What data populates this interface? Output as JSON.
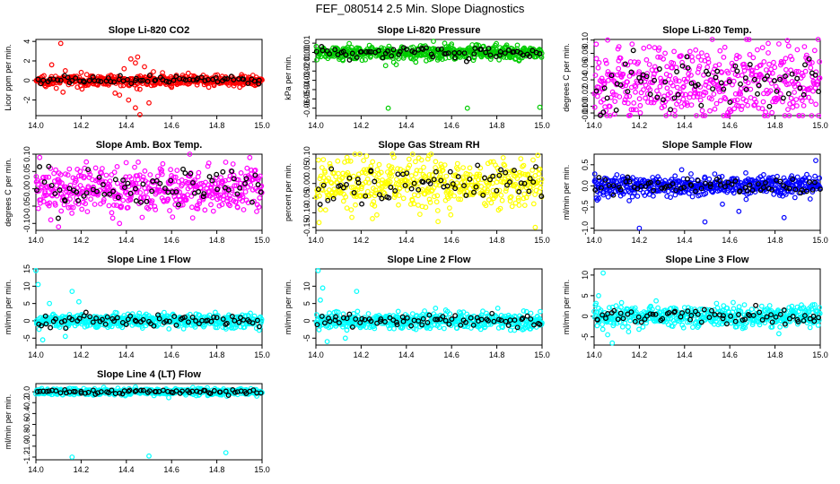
{
  "figure_title": "FEF_080514  2.5 Min. Slope Diagnostics",
  "colors": {
    "red": "#ff0000",
    "green": "#00cc00",
    "magenta": "#ff00ff",
    "yellow": "#ffff00",
    "blue": "#0000ff",
    "cyan": "#00ffff",
    "black": "#000000"
  },
  "chart_data": [
    {
      "type": "scatter",
      "title": "Slope Li-820 CO2",
      "ylabel": "Licor ppm per min.",
      "color": "red",
      "xlim": [
        14.0,
        15.0
      ],
      "ylim": [
        -3.6,
        4.2
      ],
      "x_ticks": [
        "14.0",
        "14.2",
        "14.4",
        "14.6",
        "14.8",
        "15.0"
      ],
      "y_ticks": [
        "-2",
        "0",
        "2",
        "4"
      ],
      "center": 0,
      "noise": 0.25,
      "outliers": [
        [
          14.11,
          3.8
        ],
        [
          14.12,
          -1.2
        ],
        [
          14.07,
          1.6
        ],
        [
          14.09,
          -0.8
        ],
        [
          14.13,
          1.0
        ],
        [
          14.35,
          -1.3
        ],
        [
          14.37,
          -1.5
        ],
        [
          14.39,
          1.2
        ],
        [
          14.41,
          -2.0
        ],
        [
          14.42,
          2.2
        ],
        [
          14.44,
          -2.8
        ],
        [
          14.45,
          2.4
        ],
        [
          14.46,
          -0.9
        ],
        [
          14.48,
          1.4
        ],
        [
          14.5,
          -2.3
        ],
        [
          14.52,
          0.9
        ],
        [
          14.46,
          -3.5
        ],
        [
          14.44,
          1.8
        ],
        [
          14.56,
          0.8
        ],
        [
          14.6,
          -0.7
        ]
      ]
    },
    {
      "type": "scatter",
      "title": "Slope Li-820 Pressure",
      "ylabel": "kPa per min.",
      "color": "green",
      "xlim": [
        14.0,
        15.0
      ],
      "ylim": [
        -0.068,
        0.014
      ],
      "x_ticks": [
        "14.0",
        "14.2",
        "14.4",
        "14.6",
        "14.8",
        "15.0"
      ],
      "y_ticks": [
        "-0.06",
        "-0.05",
        "-0.04",
        "-0.03",
        "-0.02",
        "-0.01",
        "0.00",
        "0.01"
      ],
      "center": 0,
      "noise": 0.004,
      "outliers": [
        [
          14.32,
          -0.06
        ],
        [
          14.67,
          -0.06
        ],
        [
          14.99,
          -0.059
        ],
        [
          14.52,
          0.012
        ],
        [
          14.6,
          0.009
        ]
      ]
    },
    {
      "type": "scatter",
      "title": "Slope Li-820 Temp.",
      "ylabel": "degrees C per min.",
      "color": "magenta",
      "xlim": [
        14.0,
        15.0
      ],
      "ylim": [
        -0.014,
        0.101
      ],
      "x_ticks": [
        "14.0",
        "14.2",
        "14.4",
        "14.6",
        "14.8",
        "15.0"
      ],
      "y_ticks": [
        "-0.01",
        "0.00",
        "0.02",
        "0.04",
        "0.06",
        "0.08",
        "0.10"
      ],
      "center": 0.035,
      "noise": 0.028,
      "outliers": [
        [
          14.06,
          0.1
        ],
        [
          14.93,
          0.09
        ],
        [
          14.77,
          0.095
        ],
        [
          14.11,
          0.09
        ]
      ]
    },
    {
      "type": "scatter",
      "title": "Slope Amb. Box Temp.",
      "ylabel": "degrees C per min.",
      "color": "magenta",
      "xlim": [
        14.0,
        15.0
      ],
      "ylim": [
        -0.12,
        0.1
      ],
      "x_ticks": [
        "14.0",
        "14.2",
        "14.4",
        "14.6",
        "14.8",
        "15.0"
      ],
      "y_ticks": [
        "-0.10",
        "-0.05",
        "0.00",
        "0.05",
        "0.10"
      ],
      "center": 0,
      "noise": 0.035,
      "outliers": [
        [
          14.1,
          -0.11
        ],
        [
          14.68,
          0.1
        ],
        [
          14.37,
          -0.1
        ]
      ]
    },
    {
      "type": "scatter",
      "title": "Slope Gas Stream RH",
      "ylabel": "percent per min.",
      "color": "yellow",
      "xlim": [
        14.0,
        15.0
      ],
      "ylim": [
        -0.16,
        0.1
      ],
      "x_ticks": [
        "14.0",
        "14.2",
        "14.4",
        "14.6",
        "14.8",
        "15.0"
      ],
      "y_ticks": [
        "-0.15",
        "-0.10",
        "-0.05",
        "0.00",
        "0.05",
        "0.10"
      ],
      "center": 0,
      "noise": 0.04,
      "outliers": [
        [
          14.97,
          -0.15
        ],
        [
          14.54,
          -0.13
        ],
        [
          14.25,
          -0.12
        ],
        [
          14.5,
          0.095
        ]
      ]
    },
    {
      "type": "scatter",
      "title": "Slope Sample Flow",
      "ylabel": "ml/min per min.",
      "color": "blue",
      "xlim": [
        14.0,
        15.0
      ],
      "ylim": [
        -1.05,
        0.75
      ],
      "x_ticks": [
        "14.0",
        "14.2",
        "14.4",
        "14.6",
        "14.8",
        "15.0"
      ],
      "y_ticks": [
        "-1.0",
        "-0.5",
        "0.0",
        "0.5"
      ],
      "center": 0,
      "noise": 0.12,
      "outliers": [
        [
          14.2,
          -1.0
        ],
        [
          14.49,
          -0.85
        ],
        [
          14.64,
          -0.6
        ],
        [
          14.84,
          -0.75
        ],
        [
          14.98,
          0.6
        ],
        [
          14.02,
          -0.3
        ]
      ]
    },
    {
      "type": "scatter",
      "title": "Slope Line 1 Flow",
      "ylabel": "ml/min per min.",
      "color": "cyan",
      "xlim": [
        14.0,
        15.0
      ],
      "ylim": [
        -7,
        15
      ],
      "x_ticks": [
        "14.0",
        "14.2",
        "14.4",
        "14.6",
        "14.8",
        "15.0"
      ],
      "y_ticks": [
        "-5",
        "0",
        "5",
        "10",
        "15"
      ],
      "center": 0,
      "noise": 1.0,
      "outliers": [
        [
          14.0,
          14.5
        ],
        [
          14.01,
          10.5
        ],
        [
          14.16,
          8.5
        ],
        [
          14.03,
          -5.5
        ],
        [
          14.06,
          5.0
        ],
        [
          14.13,
          -4.5
        ],
        [
          14.19,
          5.5
        ]
      ]
    },
    {
      "type": "scatter",
      "title": "Slope Line 2 Flow",
      "ylabel": "ml/min per min.",
      "color": "cyan",
      "xlim": [
        14.0,
        15.0
      ],
      "ylim": [
        -7,
        15
      ],
      "x_ticks": [
        "14.0",
        "14.2",
        "14.4",
        "14.6",
        "14.8",
        "15.0"
      ],
      "y_ticks": [
        "-5",
        "0",
        "5",
        "10"
      ],
      "center": 0,
      "noise": 1.2,
      "outliers": [
        [
          14.01,
          14.5
        ],
        [
          14.03,
          9.5
        ],
        [
          14.18,
          8.5
        ],
        [
          14.05,
          -6.0
        ],
        [
          14.13,
          -5.0
        ],
        [
          14.02,
          6.0
        ]
      ]
    },
    {
      "type": "scatter",
      "title": "Slope Line 3 Flow",
      "ylabel": "ml/min per min.",
      "color": "cyan",
      "xlim": [
        14.0,
        15.0
      ],
      "ylim": [
        -7,
        11.5
      ],
      "x_ticks": [
        "14.0",
        "14.2",
        "14.4",
        "14.6",
        "14.8",
        "15.0"
      ],
      "y_ticks": [
        "-5",
        "0",
        "5",
        "10"
      ],
      "center": 0,
      "noise": 1.3,
      "outliers": [
        [
          14.04,
          10.5
        ],
        [
          14.08,
          -6.5
        ],
        [
          14.02,
          5.0
        ],
        [
          14.06,
          -4.5
        ]
      ]
    },
    {
      "type": "scatter",
      "title": "Slope Line 4 (LT) Flow",
      "ylabel": "ml/min per min.",
      "color": "cyan",
      "xlim": [
        14.0,
        15.0
      ],
      "ylim": [
        -1.25,
        0.15
      ],
      "x_ticks": [
        "14.0",
        "14.2",
        "14.4",
        "14.6",
        "14.8",
        "15.0"
      ],
      "y_ticks": [
        "-1.2",
        "-1.0",
        "-0.8",
        "-0.6",
        "-0.4",
        "-0.2",
        "0.0"
      ],
      "center": 0,
      "noise": 0.03,
      "outliers": [
        [
          14.16,
          -1.2
        ],
        [
          14.5,
          -1.18
        ],
        [
          14.84,
          -1.12
        ]
      ]
    }
  ]
}
